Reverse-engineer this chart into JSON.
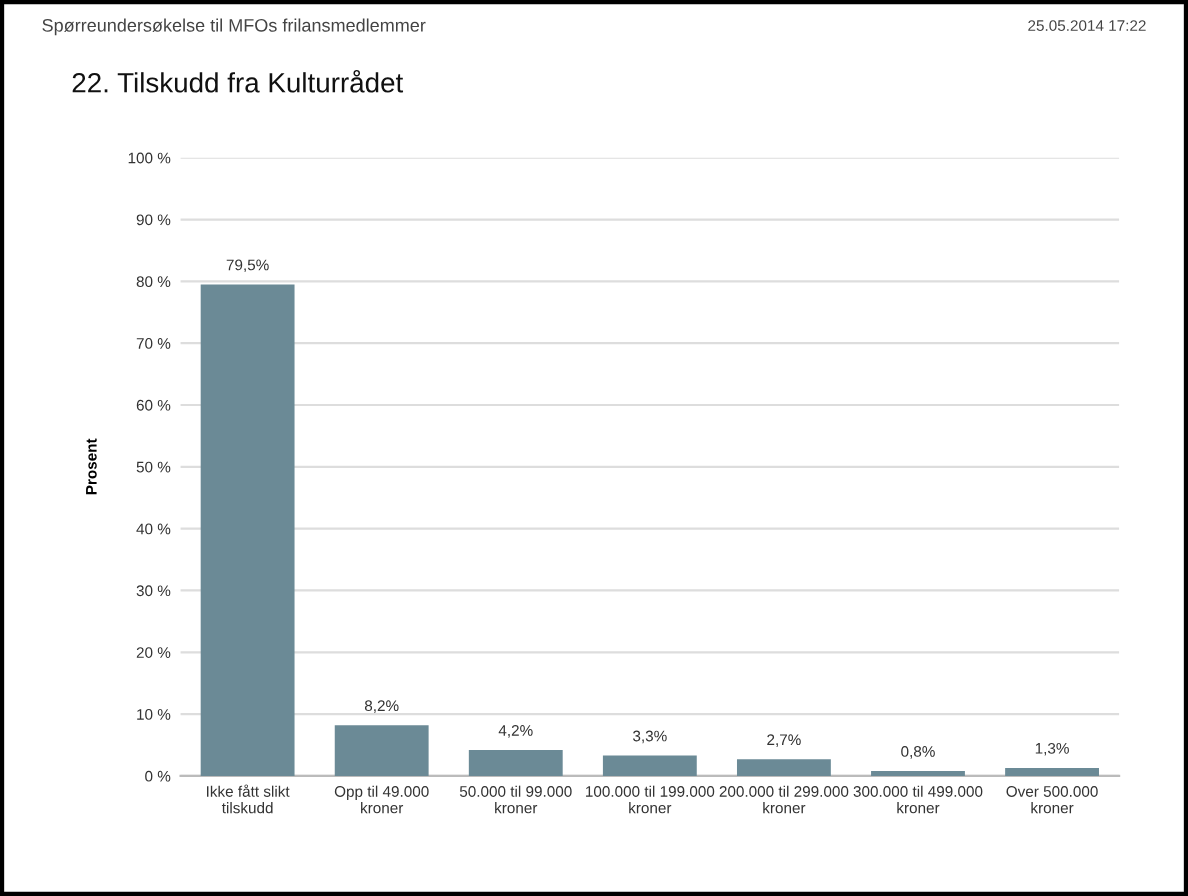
{
  "chart_data": {
    "type": "bar",
    "title": "22. Tilskudd fra Kulturrådet",
    "ylabel": "Prosent",
    "annotations": [
      "Spørreundersøkelse til MFOs frilansmedlemmer",
      "25.05.2014 17:22"
    ],
    "categories": [
      "Ikke fått slikt\ntilskudd",
      "Opp til 49.000\nkroner",
      "50.000 til 99.000\nkroner",
      "100.000 til 199.000\nkroner",
      "200.000 til 299.000\nkroner",
      "300.000 til 499.000\nkroner",
      "Over 500.000\nkroner"
    ],
    "values": [
      79.5,
      8.2,
      4.2,
      3.3,
      2.7,
      0.8,
      1.3
    ],
    "value_labels": [
      "79,5%",
      "8,2%",
      "4,2%",
      "3,3%",
      "2,7%",
      "0,8%",
      "1,3%"
    ],
    "color": "#6b8a96",
    "ylim": [
      0,
      100
    ],
    "yticks": [
      {
        "value": 0,
        "label": "0 %"
      },
      {
        "value": 10,
        "label": "10 %"
      },
      {
        "value": 20,
        "label": "20 %"
      },
      {
        "value": 30,
        "label": "30 %"
      },
      {
        "value": 40,
        "label": "40 %"
      },
      {
        "value": 50,
        "label": "50 %"
      },
      {
        "value": 60,
        "label": "60 %"
      },
      {
        "value": 70,
        "label": "70 %"
      },
      {
        "value": 80,
        "label": "80 %"
      },
      {
        "value": 90,
        "label": "90 %"
      },
      {
        "value": 100,
        "label": "100 %"
      }
    ],
    "grid": "y",
    "legend": false
  }
}
